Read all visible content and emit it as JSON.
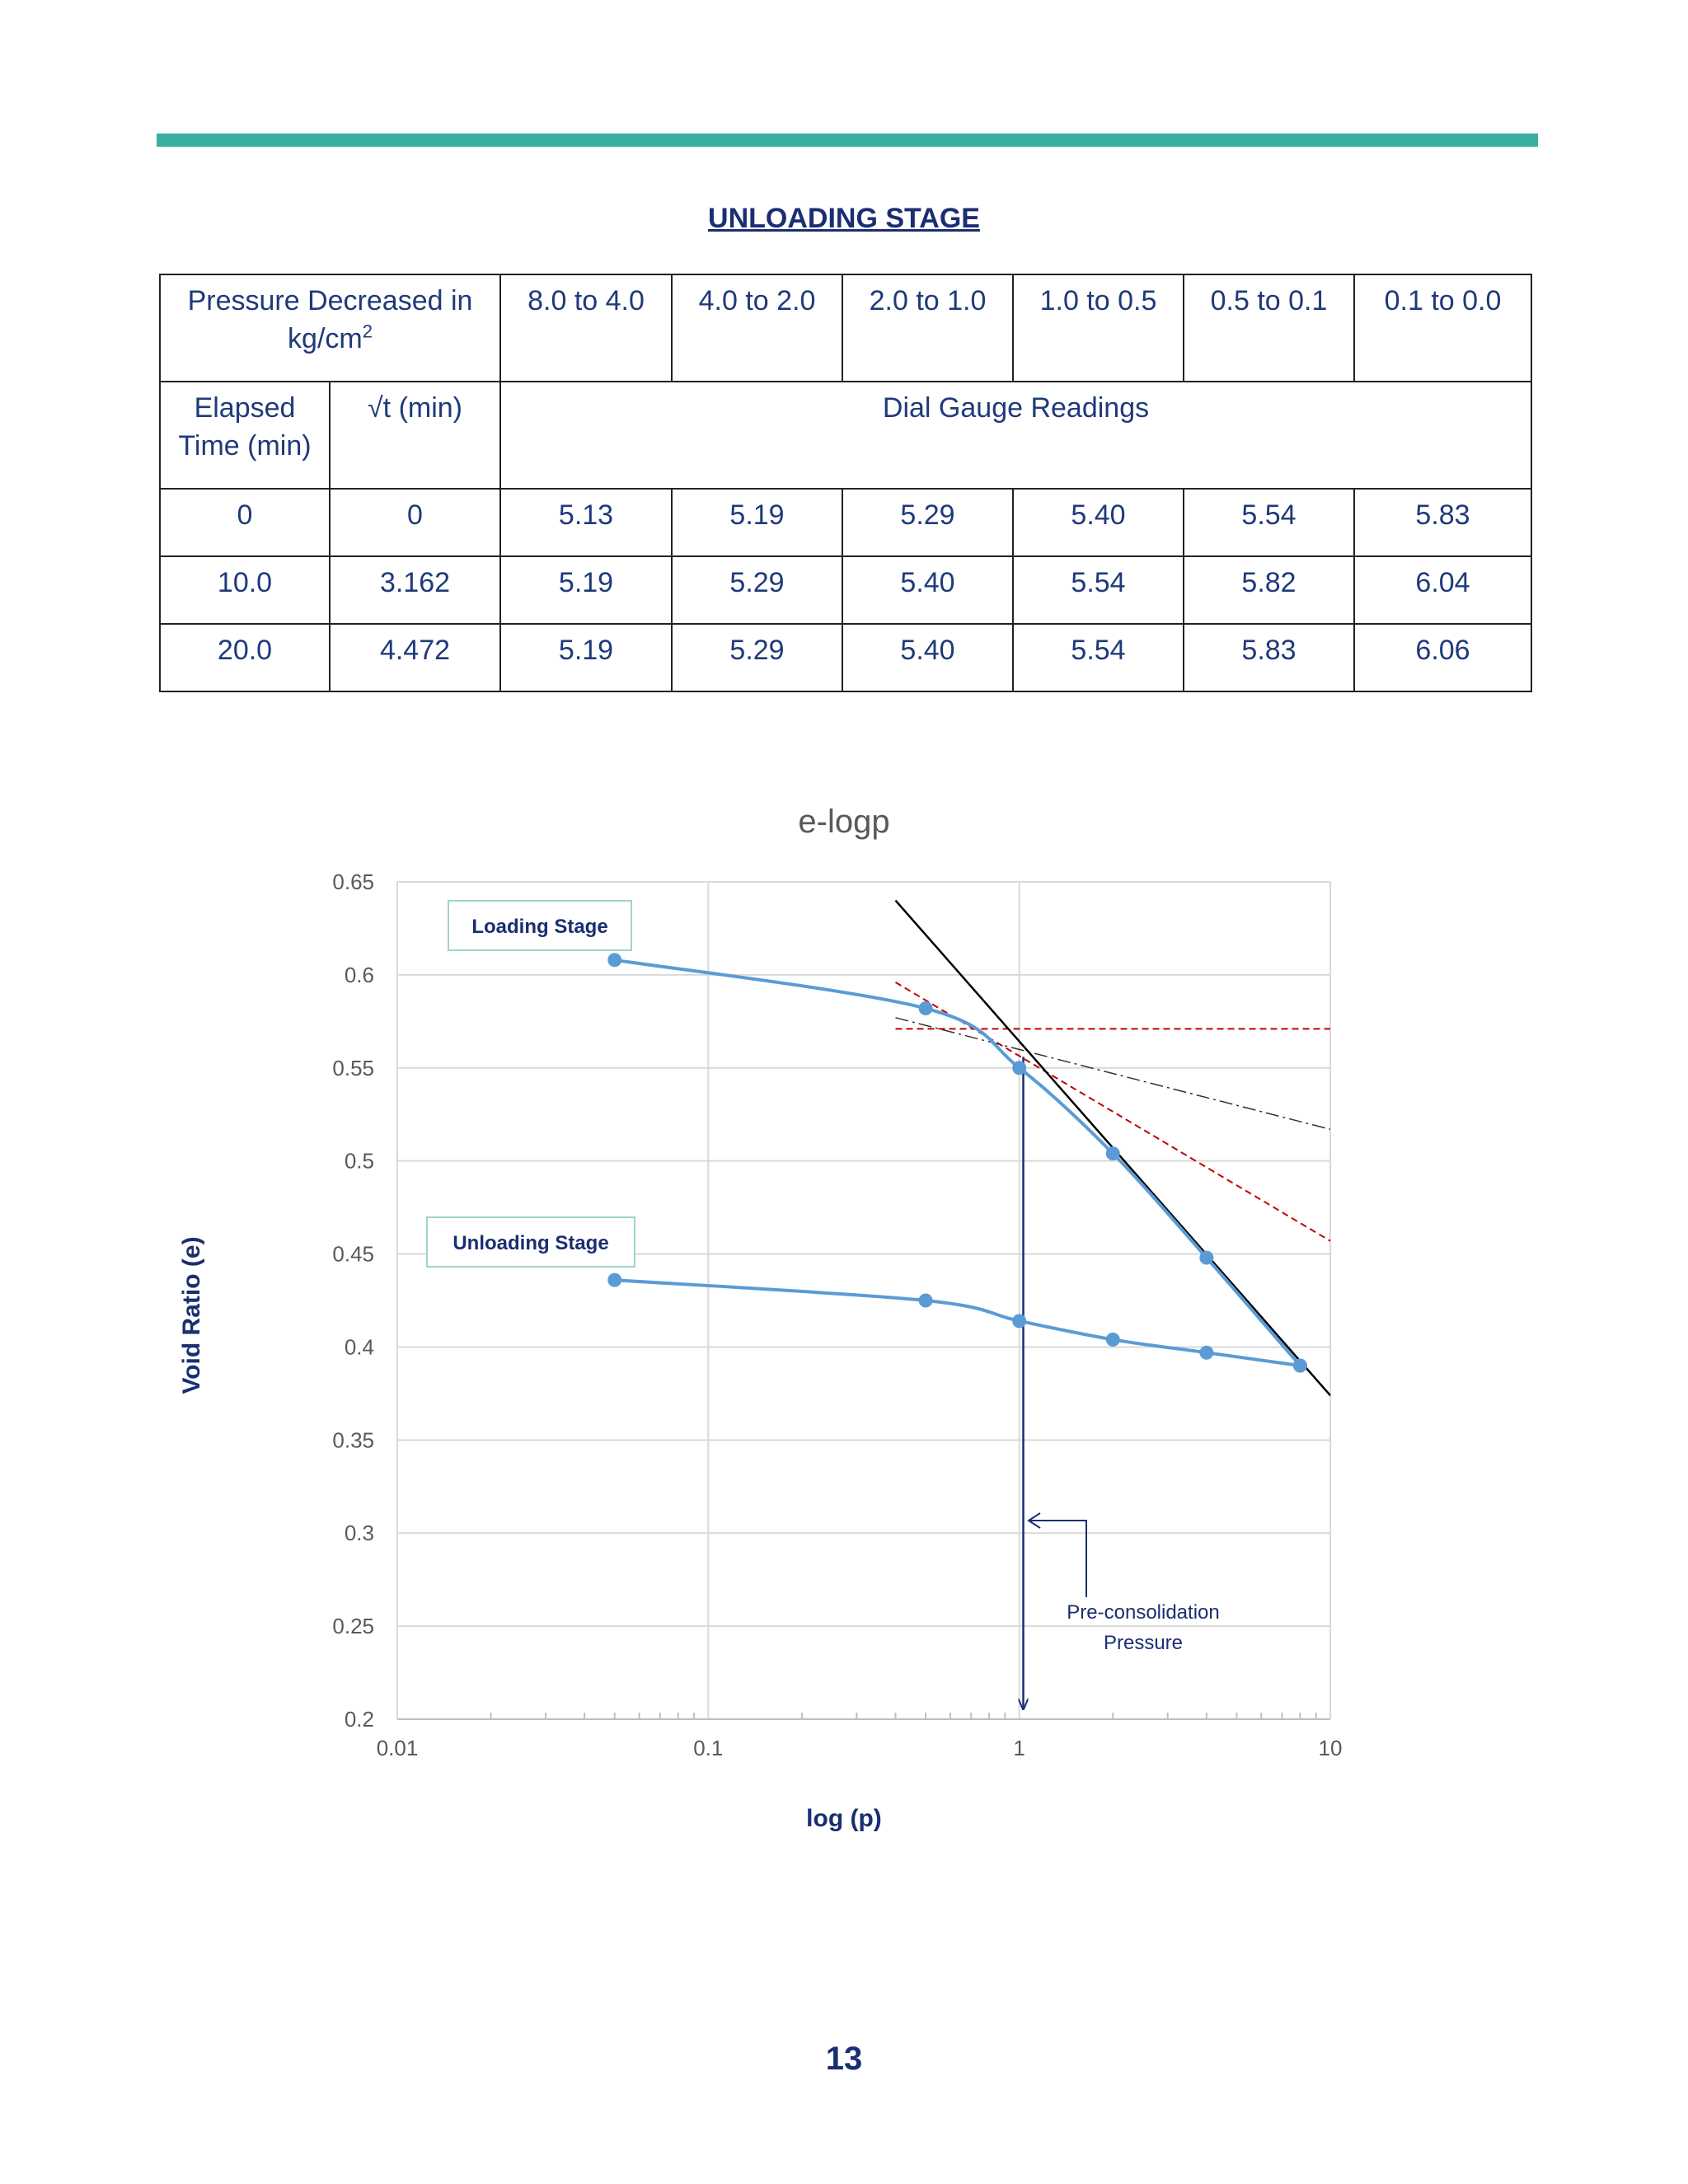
{
  "section_title": "UNLOADING STAGE",
  "table": {
    "header_label": "Pressure Decreased in kg/cm",
    "header_sup": "2",
    "pressure_ranges": [
      "8.0 to 4.0",
      "4.0 to 2.0",
      "2.0 to 1.0",
      "1.0 to 0.5",
      "0.5 to 0.1",
      "0.1 to 0.0"
    ],
    "col_elapsed": "Elapsed Time (min)",
    "col_sqrt": "√t (min)",
    "col_readings": "Dial Gauge Readings",
    "rows": [
      {
        "elapsed": "0",
        "sqrt": "0",
        "readings": [
          "5.13",
          "5.19",
          "5.29",
          "5.40",
          "5.54",
          "5.83"
        ]
      },
      {
        "elapsed": "10.0",
        "sqrt": "3.162",
        "readings": [
          "5.19",
          "5.29",
          "5.40",
          "5.54",
          "5.82",
          "6.04"
        ]
      },
      {
        "elapsed": "20.0",
        "sqrt": "4.472",
        "readings": [
          "5.19",
          "5.29",
          "5.40",
          "5.54",
          "5.83",
          "6.06"
        ]
      }
    ]
  },
  "chart_data": {
    "type": "scatter",
    "title": "e-logp",
    "xlabel": "log (p)",
    "ylabel": "Void Ratio (e)",
    "x_scale": "log",
    "xlim": [
      0.01,
      10
    ],
    "ylim": [
      0.2,
      0.65
    ],
    "x_ticks": [
      "0.01",
      "0.1",
      "1",
      "10"
    ],
    "y_ticks": [
      "0.2",
      "0.25",
      "0.3",
      "0.35",
      "0.4",
      "0.45",
      "0.5",
      "0.55",
      "0.6",
      "0.65"
    ],
    "grid": true,
    "colors": {
      "series": "#5b9bd5",
      "construction": "#000000",
      "tangent": "#c00000",
      "annotation": "#1a2e72",
      "label_border": "#9fd4cf"
    },
    "series": [
      {
        "name": "Loading Stage",
        "x": [
          0.05,
          0.5,
          1,
          2,
          4,
          8
        ],
        "y": [
          0.608,
          0.582,
          0.55,
          0.504,
          0.448,
          0.39
        ]
      },
      {
        "name": "Unloading Stage",
        "x": [
          0.05,
          0.5,
          1,
          2,
          4,
          8
        ],
        "y": [
          0.436,
          0.425,
          0.414,
          0.404,
          0.397,
          0.39
        ]
      }
    ],
    "construction_lines": {
      "virgin_line": {
        "x": [
          0.4,
          10
        ],
        "y": [
          0.64,
          0.374
        ]
      },
      "horizontal": {
        "x": [
          0.4,
          10
        ],
        "y": [
          0.571,
          0.571
        ]
      },
      "tangent": {
        "x": [
          0.4,
          10
        ],
        "y": [
          0.596,
          0.457
        ]
      },
      "bisector": {
        "x": [
          0.4,
          10
        ],
        "y": [
          0.577,
          0.517
        ]
      },
      "preconsolidation_x": 1.03
    },
    "annotations": {
      "loading_label": "Loading Stage",
      "unloading_label": "Unloading Stage",
      "preconsolidation_line1": "Pre-consolidation",
      "preconsolidation_line2": "Pressure"
    }
  },
  "page_number": "13"
}
